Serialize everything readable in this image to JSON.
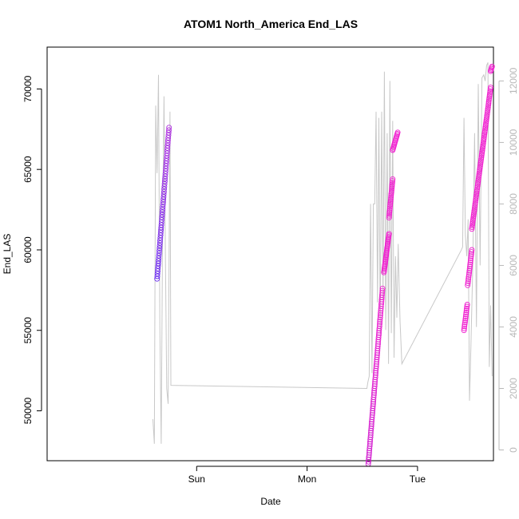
{
  "chart_data": {
    "type": "scatter",
    "title": "ATOM1 North_America End_LAS",
    "xlabel": "Date",
    "ylabel": "End_LAS",
    "x_axis": {
      "unit": "hours",
      "range": [
        -32.5,
        64.5
      ],
      "ticks": [
        {
          "label": "Sun",
          "x": 0
        },
        {
          "label": "Mon",
          "x": 24
        },
        {
          "label": "Tue",
          "x": 48
        }
      ]
    },
    "y_left": {
      "range": [
        46900,
        72600
      ],
      "ticks": [
        50000,
        55000,
        60000,
        65000,
        70000
      ]
    },
    "y_right": {
      "range": [
        -350,
        13100
      ],
      "ticks": [
        0,
        2000,
        4000,
        6000,
        8000,
        10000,
        12000
      ]
    },
    "grid": false,
    "colors": {
      "secondary_line": "#c8c8c8",
      "points_start": "#6a2cf0",
      "points_end": "#ee22cc"
    },
    "series": [
      {
        "axis": "left",
        "style": "points",
        "segments": [
          {
            "x": [
              -8.6,
              -6.0
            ],
            "y": [
              58200,
              67600
            ],
            "n": 60,
            "color_from": "#6a2cf0",
            "color_to": "#b030e0"
          },
          {
            "x": [
              37.3,
              40.4
            ],
            "y": [
              46700,
              57600
            ],
            "n": 80,
            "color_from": "#d020d0",
            "color_to": "#f020d0"
          },
          {
            "x": [
              40.7,
              41.8
            ],
            "y": [
              58600,
              61000
            ],
            "n": 28,
            "color_from": "#f020d0",
            "color_to": "#f020d0"
          },
          {
            "x": [
              41.8,
              42.6
            ],
            "y": [
              62000,
              64400
            ],
            "n": 22,
            "color_from": "#f020d0",
            "color_to": "#f020d0"
          },
          {
            "x": [
              42.6,
              43.7
            ],
            "y": [
              66200,
              67300
            ],
            "n": 14,
            "color_from": "#f020d0",
            "color_to": "#f020d0"
          },
          {
            "x": [
              58.1,
              58.8
            ],
            "y": [
              55000,
              56600
            ],
            "n": 14,
            "color_from": "#f020d0",
            "color_to": "#f020d0"
          },
          {
            "x": [
              58.9,
              59.8
            ],
            "y": [
              57800,
              60000
            ],
            "n": 18,
            "color_from": "#f020d0",
            "color_to": "#f020d0"
          },
          {
            "x": [
              59.8,
              63.9
            ],
            "y": [
              61300,
              70100
            ],
            "n": 80,
            "color_from": "#f020d0",
            "color_to": "#f020d0"
          },
          {
            "x": [
              63.9,
              64.2
            ],
            "y": [
              71100,
              71400
            ],
            "n": 5,
            "color_from": "#f020d0",
            "color_to": "#f020d0"
          }
        ]
      },
      {
        "axis": "right",
        "style": "line",
        "x": [
          -9.5,
          -9.2,
          -8.9,
          -8.6,
          -8.3,
          -8.0,
          -7.7,
          -7.4,
          -7.1,
          -6.8,
          -6.5,
          -6.2,
          -5.8,
          -5.6,
          37.0,
          37.2,
          37.5,
          37.8,
          38.1,
          38.4,
          38.7,
          39.0,
          39.3,
          39.6,
          39.9,
          40.2,
          40.5,
          40.8,
          41.1,
          41.4,
          41.7,
          42.0,
          42.3,
          42.6,
          42.9,
          43.2,
          43.5,
          43.8,
          44.2,
          44.6,
          57.5,
          57.8,
          58.1,
          58.4,
          58.7,
          59.0,
          59.3,
          59.6,
          60.0,
          60.4,
          60.8,
          61.2,
          61.6,
          62.0,
          62.4,
          62.7,
          63.0,
          63.3,
          63.6,
          63.9,
          64.2
        ],
        "y": [
          1000,
          200,
          11200,
          9000,
          12200,
          4000,
          200,
          7000,
          11500,
          6500,
          2000,
          1500,
          11000,
          2100,
          2000,
          2200,
          2400,
          8000,
          2500,
          8000,
          8000,
          11000,
          4800,
          10800,
          3800,
          11000,
          4900,
          12300,
          3900,
          10300,
          2800,
          12000,
          3800,
          10700,
          3000,
          6300,
          4300,
          6700,
          4200,
          2800,
          6500,
          6600,
          10800,
          7000,
          6300,
          7500,
          1600,
          3400,
          6000,
          10300,
          4000,
          11900,
          6000,
          12100,
          12200,
          12000,
          12500,
          12600,
          2700,
          4700,
          2400
        ]
      }
    ]
  }
}
